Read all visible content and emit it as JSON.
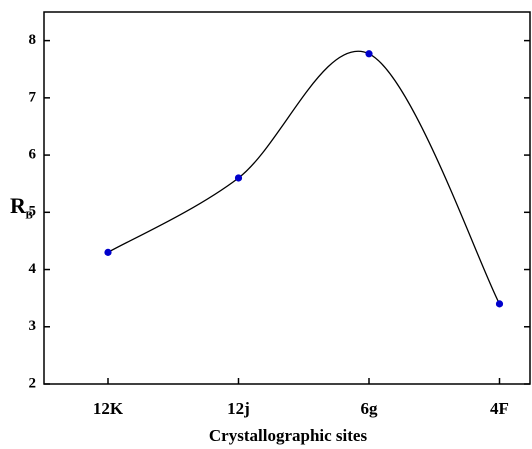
{
  "chart_data": {
    "type": "line",
    "x_label": "Crystallographic sites",
    "y_label": "R",
    "y_label_subscript": "B",
    "categories": [
      "12K",
      "12j",
      "6g",
      "4F"
    ],
    "values": [
      4.3,
      5.6,
      7.77,
      3.4
    ],
    "color": "#0000cc",
    "line_color": "#000000",
    "smooth": true,
    "ylim": [
      2,
      8.5
    ],
    "yticks": [
      2,
      3,
      4,
      5,
      6,
      7,
      8
    ]
  }
}
